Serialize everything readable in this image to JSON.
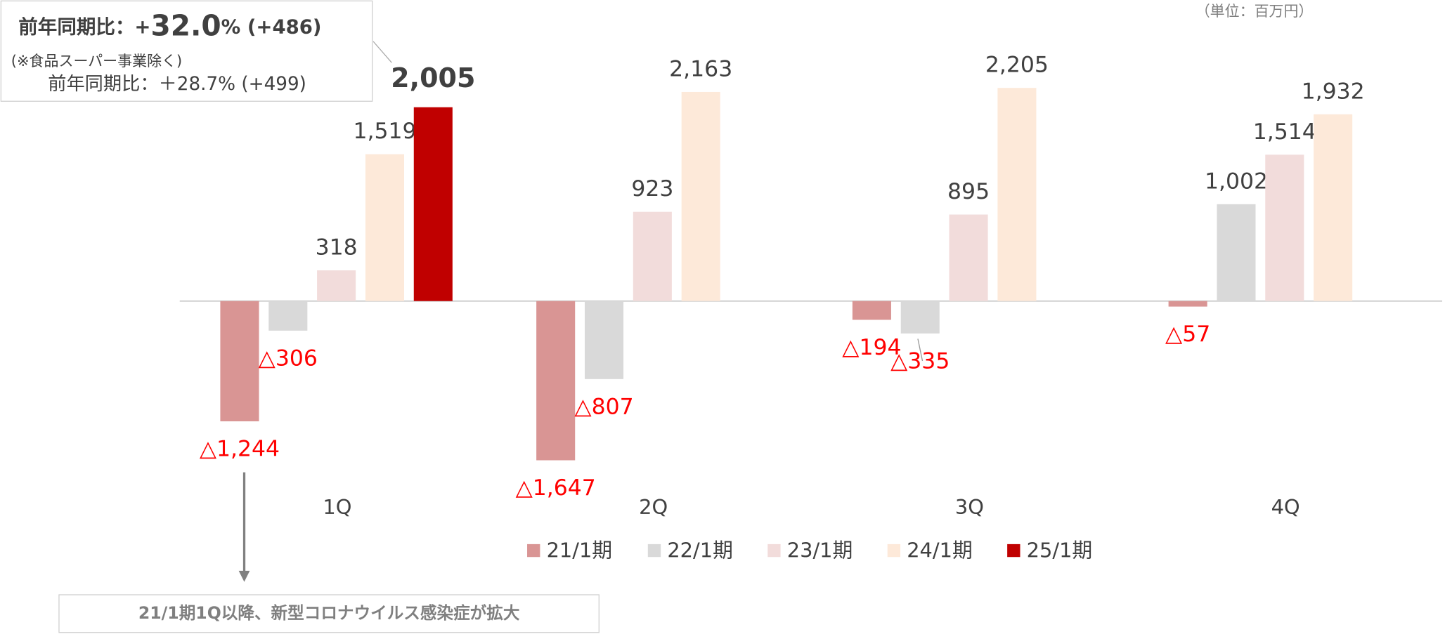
{
  "chart_data": {
    "type": "bar",
    "unit_note": "（単位：百万円）",
    "categories": [
      "1Q",
      "2Q",
      "3Q",
      "4Q"
    ],
    "series": [
      {
        "name": "21/1期",
        "color": "#d99594",
        "values": [
          -1244,
          -1647,
          -194,
          -57
        ],
        "value_labels": [
          "△1,244",
          "△1,647",
          "△194",
          "△57"
        ]
      },
      {
        "name": "22/1期",
        "color": "#d9d9d9",
        "values": [
          -306,
          -807,
          -335,
          1002
        ],
        "value_labels": [
          "△306",
          "△807",
          "△335",
          "1,002"
        ]
      },
      {
        "name": "23/1期",
        "color": "#f2dcdb",
        "values": [
          318,
          923,
          895,
          1514
        ],
        "value_labels": [
          "318",
          "923",
          "895",
          "1,514"
        ]
      },
      {
        "name": "24/1期",
        "color": "#fde9d9",
        "values": [
          1519,
          2163,
          2205,
          1932
        ],
        "value_labels": [
          "1,519",
          "2,163",
          "2,205",
          "1,932"
        ]
      },
      {
        "name": "25/1期",
        "color": "#c00000",
        "values": [
          2005,
          null,
          null,
          null
        ],
        "value_labels": [
          "2,005",
          null,
          null,
          null
        ]
      }
    ],
    "ylim": [
      -2000,
      2500
    ],
    "negative_label_color": "#ff0000",
    "annotation": {
      "headline": [
        "前年同期比：+",
        "32.0",
        "% (+486)"
      ],
      "sub_note": "(※食品スーパー事業除く)",
      "sub_value": "前年同期比：＋28.7% (+499)"
    },
    "footnote": "21/1期1Q以降、新型コロナウイルス感染症が拡大"
  }
}
